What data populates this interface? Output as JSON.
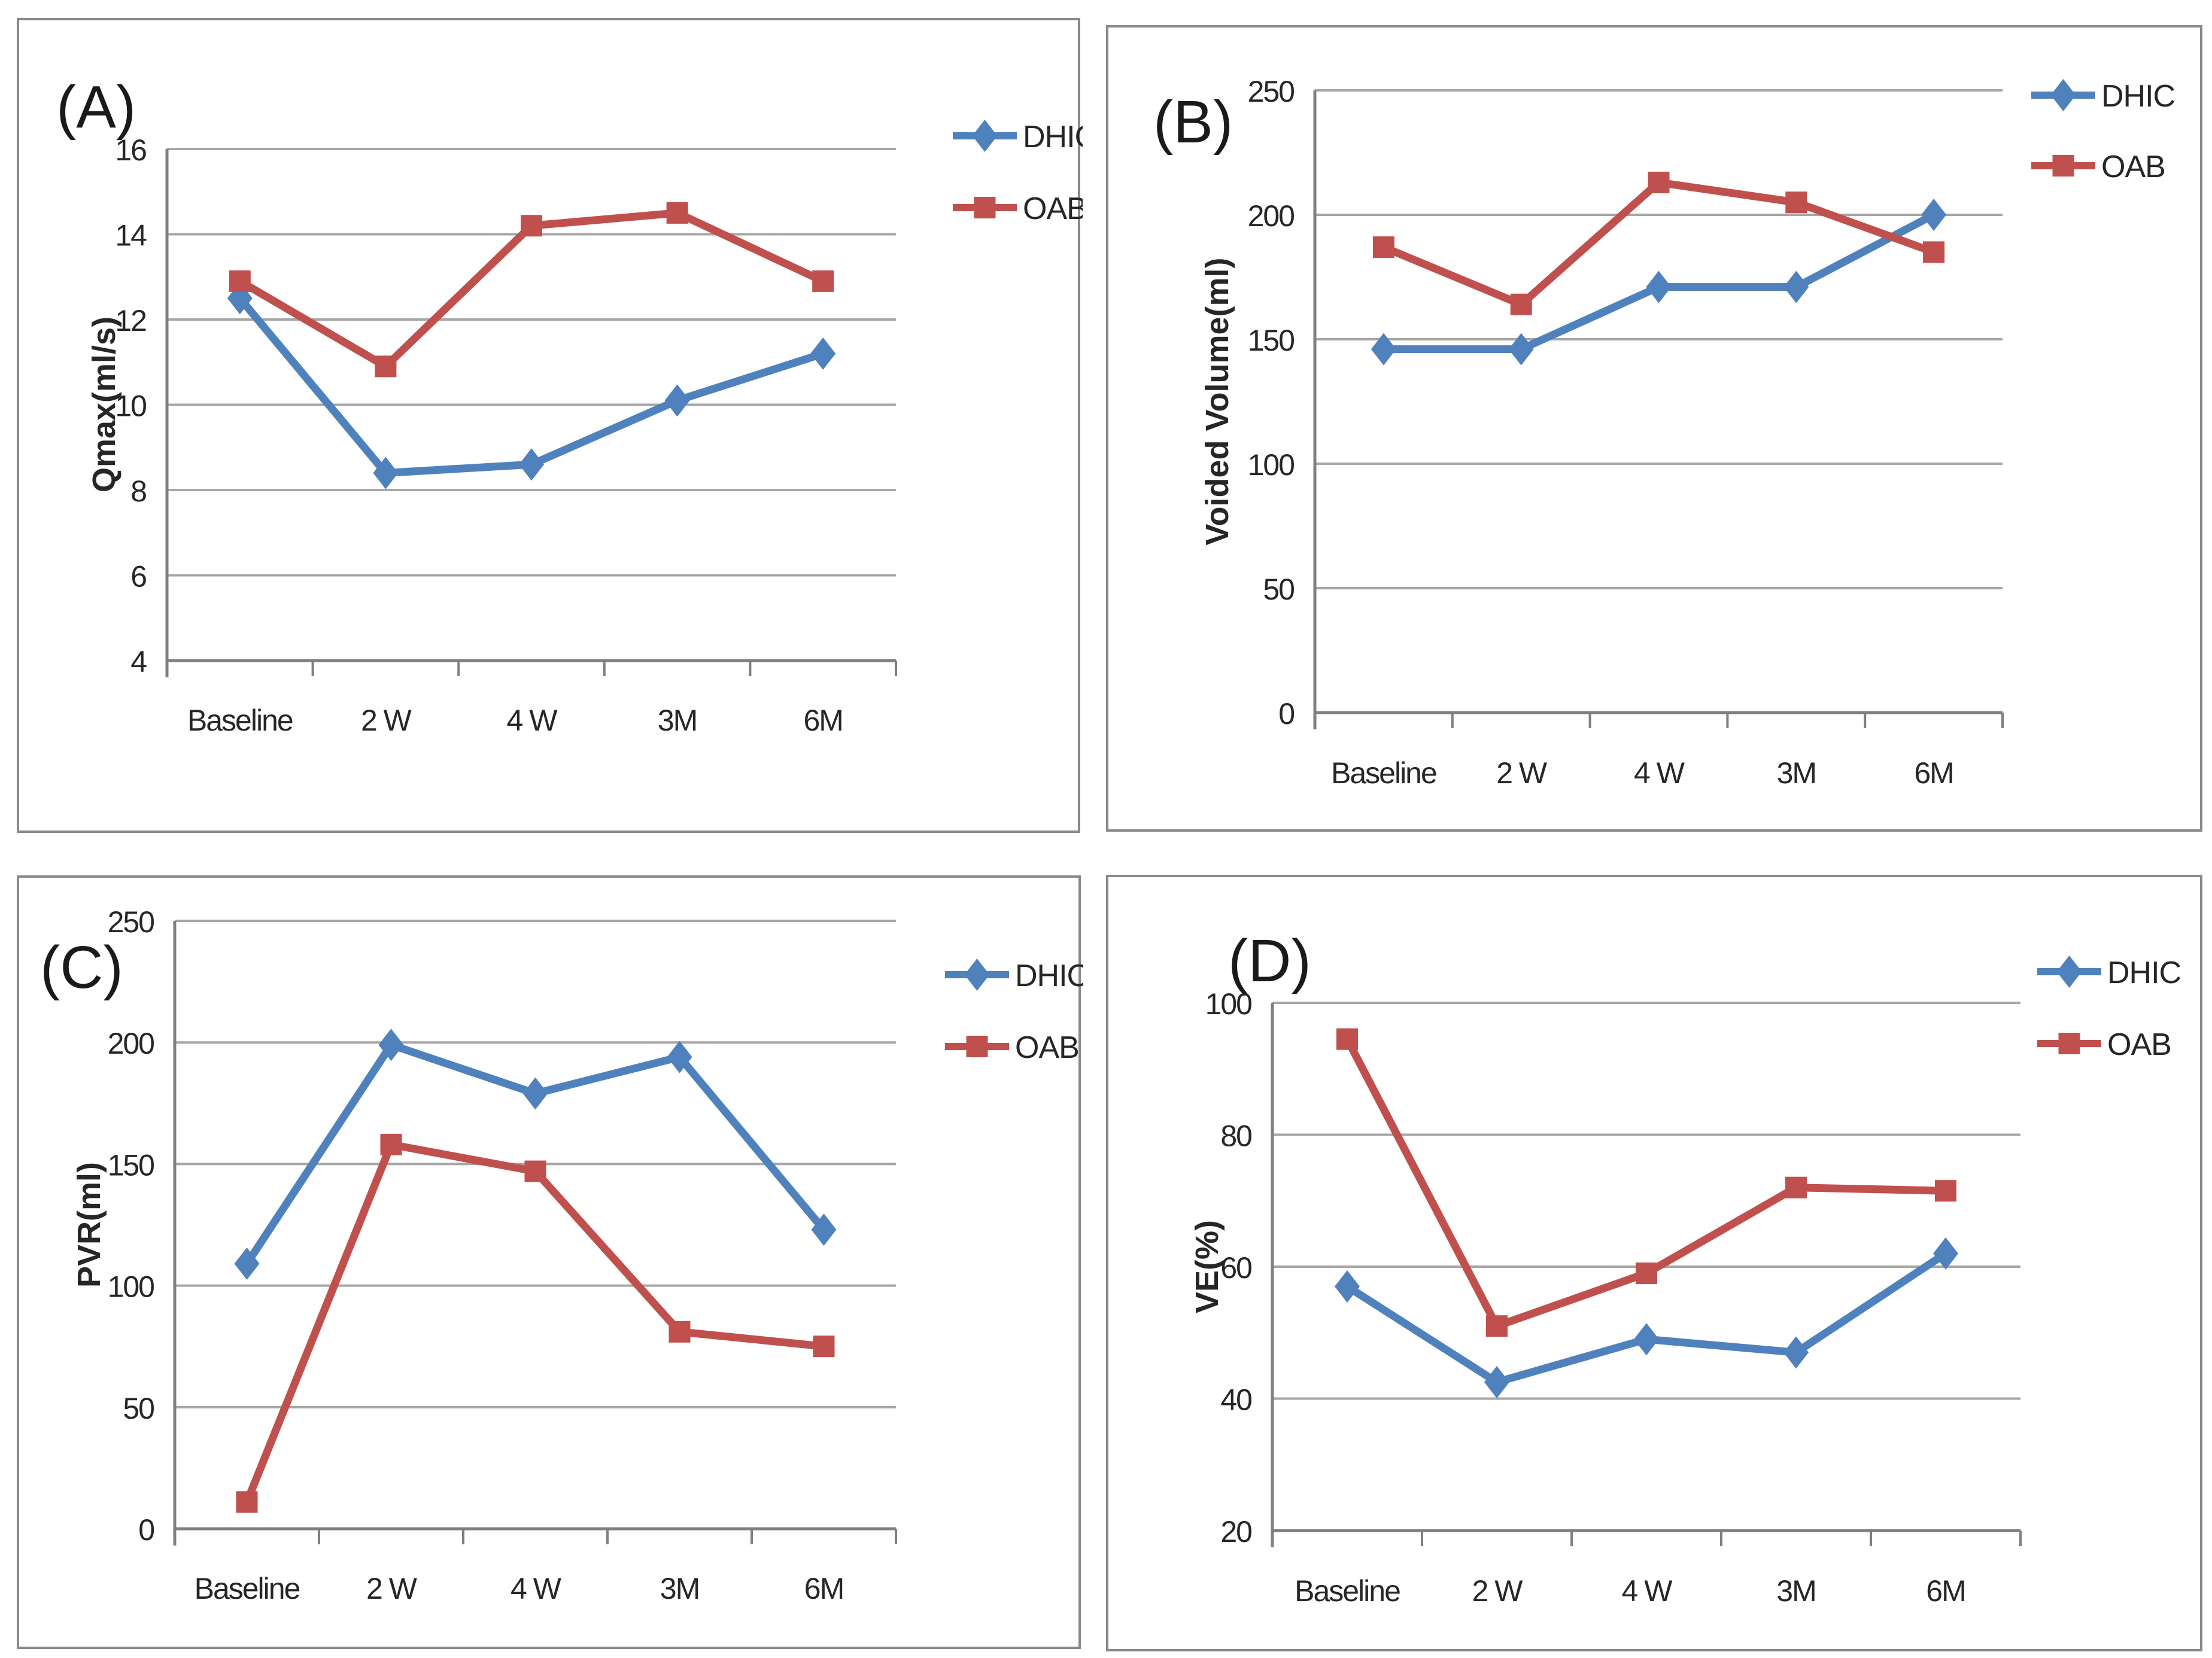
{
  "figure": {
    "description": "Four-panel line chart figure comparing DHIC and OAB groups over follow-up visits",
    "background": "#ffffff"
  },
  "colors": {
    "dhic_series": "#4f81bd",
    "oab_series": "#c0504d",
    "gridline": "#a6a6a6",
    "axis": "#7f7f7f",
    "label_text": "#262626",
    "panel_border": "#8a8a8a"
  },
  "legend": {
    "entries": [
      "DHIC",
      "OAB"
    ],
    "position": "top-right"
  },
  "chart_data": [
    {
      "type": "line",
      "panel_label": "(A)",
      "title": "",
      "xlabel": "",
      "ylabel": "Qmax(ml/s)",
      "ylim": [
        4,
        16
      ],
      "ytick_step": 2,
      "yticks": [
        16,
        14,
        12,
        10,
        8,
        6,
        4
      ],
      "grid": true,
      "legend_position": "top-right",
      "categories": [
        "Baseline",
        "2 W",
        "4 W",
        "3M",
        "6M"
      ],
      "series": [
        {
          "name": "DHIC",
          "marker": "diamond",
          "color": "#4f81bd",
          "values": [
            12.5,
            8.4,
            8.6,
            10.1,
            11.2
          ]
        },
        {
          "name": "OAB",
          "marker": "square",
          "color": "#c0504d",
          "values": [
            12.9,
            10.9,
            14.2,
            14.5,
            12.9
          ]
        }
      ]
    },
    {
      "type": "line",
      "panel_label": "(B)",
      "title": "",
      "xlabel": "",
      "ylabel": "Voided Volume(ml)",
      "ylim": [
        0,
        250
      ],
      "ytick_step": 50,
      "yticks": [
        250,
        200,
        150,
        100,
        50,
        0
      ],
      "grid": true,
      "legend_position": "top-right",
      "categories": [
        "Baseline",
        "2 W",
        "4 W",
        "3M",
        "6M"
      ],
      "series": [
        {
          "name": "DHIC",
          "marker": "diamond",
          "color": "#4f81bd",
          "values": [
            146,
            146,
            171,
            171,
            200
          ]
        },
        {
          "name": "OAB",
          "marker": "square",
          "color": "#c0504d",
          "values": [
            187,
            164,
            213,
            205,
            185
          ]
        }
      ]
    },
    {
      "type": "line",
      "panel_label": "(C)",
      "title": "",
      "xlabel": "",
      "ylabel": "PVR(ml)",
      "ylim": [
        0,
        250
      ],
      "ytick_step": 50,
      "yticks": [
        250,
        200,
        150,
        100,
        50,
        0
      ],
      "grid": true,
      "legend_position": "top-right",
      "categories": [
        "Baseline",
        "2 W",
        "4 W",
        "3M",
        "6M"
      ],
      "series": [
        {
          "name": "DHIC",
          "marker": "diamond",
          "color": "#4f81bd",
          "values": [
            109,
            199,
            179,
            194,
            123
          ]
        },
        {
          "name": "OAB",
          "marker": "square",
          "color": "#c0504d",
          "values": [
            11,
            158,
            147,
            81,
            75
          ]
        }
      ]
    },
    {
      "type": "line",
      "panel_label": "(D)",
      "title": "",
      "xlabel": "",
      "ylabel": "VE(%)",
      "ylim": [
        20,
        100
      ],
      "ytick_step": 20,
      "yticks": [
        100,
        80,
        60,
        40,
        20
      ],
      "grid": true,
      "legend_position": "top-right",
      "categories": [
        "Baseline",
        "2 W",
        "4 W",
        "3M",
        "6M"
      ],
      "series": [
        {
          "name": "DHIC",
          "marker": "diamond",
          "color": "#4f81bd",
          "values": [
            57,
            42.5,
            49,
            47,
            62
          ]
        },
        {
          "name": "OAB",
          "marker": "square",
          "color": "#c0504d",
          "values": [
            94.5,
            51,
            59,
            72,
            71.5
          ]
        }
      ]
    }
  ]
}
